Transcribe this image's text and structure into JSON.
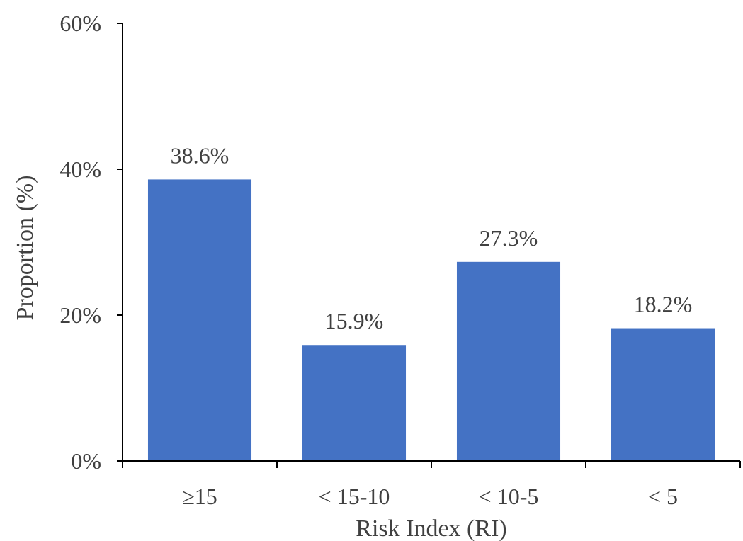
{
  "chart_data": {
    "type": "bar",
    "categories": [
      "≥15",
      "< 15-10",
      "< 10-5",
      "< 5"
    ],
    "values": [
      38.6,
      15.9,
      27.3,
      18.2
    ],
    "data_labels": [
      "38.6%",
      "15.9%",
      "27.3%",
      "18.2%"
    ],
    "xlabel": "Risk Index (RI)",
    "ylabel": "Proportion (%)",
    "ylim": [
      0,
      60
    ],
    "yticks": [
      0,
      20,
      40,
      60
    ],
    "ytick_labels": [
      "0%",
      "20%",
      "40%",
      "60%"
    ],
    "grid": false,
    "legend": "none",
    "bar_color": "#4472C4"
  }
}
